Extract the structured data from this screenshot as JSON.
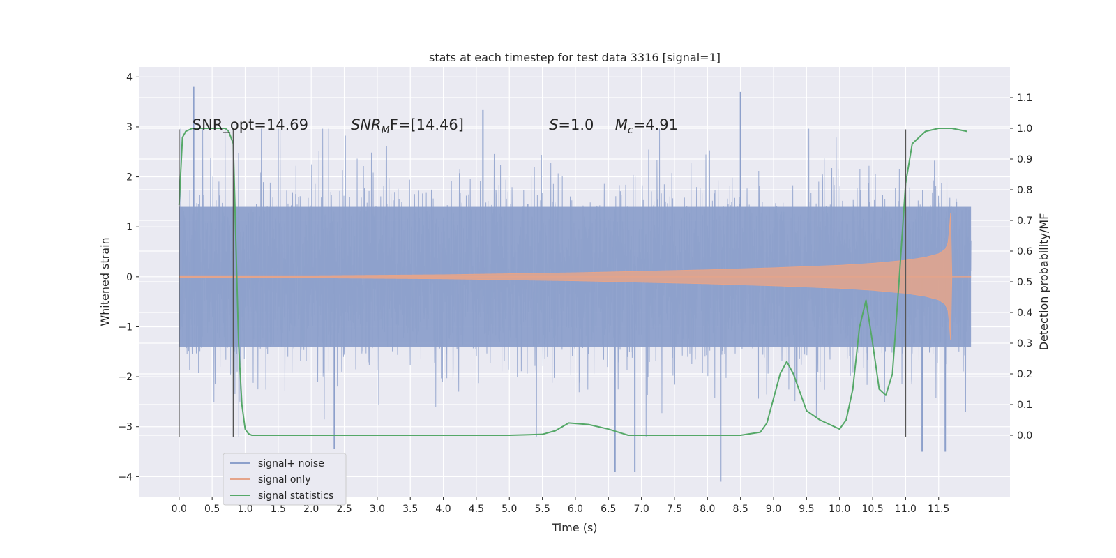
{
  "chart_data": {
    "type": "line",
    "title": "stats at each timestep for test data 3316 [signal=1]",
    "xlabel": "Time (s)",
    "ylabel": "Whitened strain",
    "y2label": "Detection probability/MF",
    "xlim": [
      -0.6,
      12.58
    ],
    "ylim": [
      -4.4,
      4.2
    ],
    "y2lim": [
      -0.2,
      1.2
    ],
    "x_ticks": [
      0.0,
      0.5,
      1.0,
      1.5,
      2.0,
      2.5,
      3.0,
      3.5,
      4.0,
      4.5,
      5.0,
      5.5,
      6.0,
      6.5,
      7.0,
      7.5,
      8.0,
      8.5,
      9.0,
      9.5,
      10.0,
      10.5,
      11.0,
      11.5
    ],
    "x_tick_labels": [
      "0.0",
      "0.5",
      "1.0",
      "1.5",
      "2.0",
      "2.5",
      "3.0",
      "3.5",
      "4.0",
      "4.5",
      "5.0",
      "5.5",
      "6.0",
      "6.5",
      "7.0",
      "7.5",
      "8.0",
      "8.5",
      "9.0",
      "9.5",
      "10.0",
      "10.5",
      "11.0",
      "11.5"
    ],
    "y_ticks": [
      -4,
      -3,
      -2,
      -1,
      0,
      1,
      2,
      3,
      4
    ],
    "y_tick_labels": [
      "−4",
      "−3",
      "−2",
      "−1",
      "0",
      "1",
      "2",
      "3",
      "4"
    ],
    "y2_ticks": [
      0.0,
      0.1,
      0.2,
      0.3,
      0.4,
      0.5,
      0.6,
      0.7,
      0.8,
      0.9,
      1.0,
      1.1
    ],
    "y2_tick_labels": [
      "0.0",
      "0.1",
      "0.2",
      "0.3",
      "0.4",
      "0.5",
      "0.6",
      "0.7",
      "0.8",
      "0.9",
      "1.0",
      "1.1"
    ],
    "grid": true,
    "legend_position": "lower-left",
    "annotations": [
      {
        "text": "SNR_opt=14.69",
        "x": 0.2,
        "y": 3.0
      },
      {
        "text": "SNR",
        "sub": "M",
        "rest": "F=[14.46]",
        "x": 2.6,
        "y": 3.0
      },
      {
        "text": "S",
        "rest": "=1.0",
        "x": 5.6,
        "y": 3.0
      },
      {
        "text": "M",
        "sub": "c",
        "rest": "=4.91",
        "x": 6.6,
        "y": 3.0
      }
    ],
    "vertical_markers": [
      {
        "x": 0.0,
        "y": [
          -3.2,
          2.95
        ]
      },
      {
        "x": 0.82,
        "y": [
          -3.2,
          2.95
        ]
      },
      {
        "x": 11.0,
        "y": [
          -3.2,
          2.95
        ]
      }
    ],
    "series": [
      {
        "name": "signal+ noise",
        "color": "#8da0cb",
        "x_range": [
          0.0,
          11.99
        ],
        "core_amplitude": 1.4,
        "peak_max": 3.8,
        "peak_min": -4.1,
        "notable_peaks": [
          [
            0.22,
            3.8
          ],
          [
            8.5,
            3.7
          ],
          [
            4.6,
            3.35
          ],
          [
            8.2,
            -4.1
          ],
          [
            6.6,
            -3.9
          ],
          [
            6.9,
            -3.9
          ],
          [
            11.25,
            -3.5
          ],
          [
            11.6,
            -3.5
          ],
          [
            2.35,
            -3.45
          ]
        ]
      },
      {
        "name": "signal only",
        "color": "#e5a48a",
        "x": [
          0.0,
          2.0,
          3.0,
          4.0,
          5.0,
          6.0,
          7.0,
          8.0,
          9.0,
          10.0,
          10.5,
          11.0,
          11.3,
          11.5,
          11.6,
          11.65,
          11.68,
          11.7
        ],
        "envelope": [
          0.02,
          0.02,
          0.03,
          0.04,
          0.06,
          0.08,
          0.11,
          0.14,
          0.18,
          0.23,
          0.27,
          0.33,
          0.39,
          0.46,
          0.55,
          0.7,
          1.3,
          0.0
        ],
        "x_end": 11.99
      },
      {
        "name": "signal statistics",
        "color": "#55a868",
        "axis": "right",
        "x": [
          0.0,
          0.05,
          0.1,
          0.2,
          0.3,
          0.5,
          0.7,
          0.75,
          0.82,
          0.9,
          0.95,
          1.0,
          1.05,
          1.1,
          1.5,
          2.0,
          2.5,
          3.0,
          4.0,
          5.0,
          5.5,
          5.7,
          5.9,
          6.2,
          6.5,
          6.8,
          7.0,
          8.0,
          8.5,
          8.8,
          8.9,
          9.0,
          9.1,
          9.2,
          9.3,
          9.5,
          9.7,
          10.0,
          10.1,
          10.2,
          10.3,
          10.4,
          10.5,
          10.6,
          10.7,
          10.8,
          10.9,
          11.0,
          11.1,
          11.3,
          11.5,
          11.7,
          11.93
        ],
        "values": [
          0.75,
          0.97,
          0.99,
          1.0,
          1.0,
          1.0,
          1.0,
          0.99,
          0.95,
          0.3,
          0.1,
          0.02,
          0.005,
          0.0,
          0.0,
          0.0,
          0.0,
          0.0,
          0.0,
          0.0,
          0.003,
          0.015,
          0.04,
          0.035,
          0.02,
          0.0,
          0.0,
          0.0,
          0.0,
          0.01,
          0.04,
          0.12,
          0.2,
          0.24,
          0.2,
          0.08,
          0.05,
          0.02,
          0.05,
          0.15,
          0.35,
          0.44,
          0.3,
          0.15,
          0.13,
          0.2,
          0.5,
          0.82,
          0.95,
          0.99,
          1.0,
          1.0,
          0.99
        ]
      }
    ]
  }
}
